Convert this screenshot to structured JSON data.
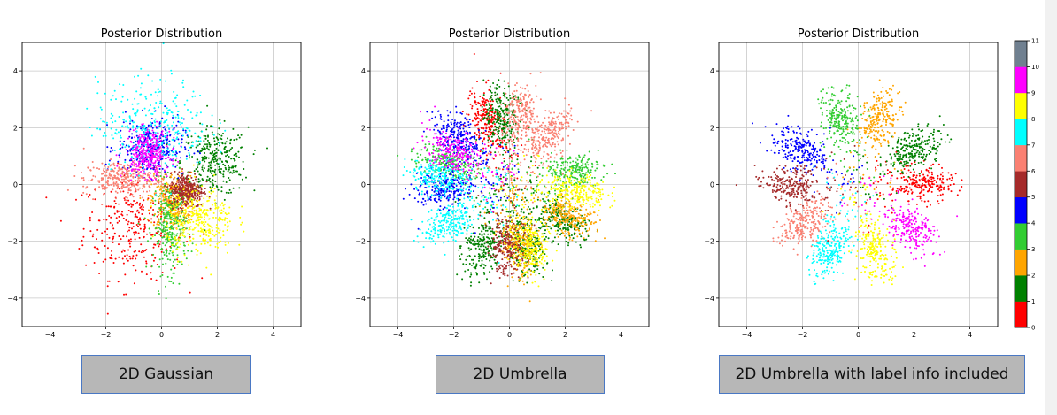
{
  "chart_data": [
    {
      "type": "scatter",
      "title": "Posterior Distribution",
      "model": "gaussian",
      "xlim": [
        -5,
        5
      ],
      "ylim": [
        -5,
        5
      ],
      "xticks": [
        -4,
        -2,
        0,
        2,
        4
      ],
      "yticks": [
        -4,
        -2,
        0,
        2,
        4
      ],
      "grid": true,
      "series": [
        {
          "label": "0",
          "cx": -1.0,
          "cy": -1.5,
          "sx": 0.9,
          "sy": 0.9
        },
        {
          "label": "1",
          "cx": 1.9,
          "cy": 0.8,
          "sx": 0.6,
          "sy": 0.6
        },
        {
          "label": "2",
          "cx": 0.4,
          "cy": -0.6,
          "sx": 0.4,
          "sy": 0.5
        },
        {
          "label": "3",
          "cx": 0.3,
          "cy": -1.5,
          "sx": 0.3,
          "sy": 0.8
        },
        {
          "label": "4",
          "cx": -0.4,
          "cy": 1.3,
          "sx": 0.6,
          "sy": 0.5
        },
        {
          "label": "5",
          "cx": 0.9,
          "cy": -0.2,
          "sx": 0.3,
          "sy": 0.3
        },
        {
          "label": "6",
          "cx": -1.4,
          "cy": 0.2,
          "sx": 0.7,
          "sy": 0.3
        },
        {
          "label": "7",
          "cx": -0.3,
          "cy": 2.1,
          "sx": 1.0,
          "sy": 0.8
        },
        {
          "label": "8",
          "cx": 1.4,
          "cy": -1.3,
          "sx": 0.6,
          "sy": 0.6
        },
        {
          "label": "9",
          "cx": -0.5,
          "cy": 1.1,
          "sx": 0.4,
          "sy": 0.4
        }
      ]
    },
    {
      "type": "scatter",
      "title": "Posterior Distribution",
      "model": "umbrella",
      "xlim": [
        -5,
        5
      ],
      "ylim": [
        -5,
        5
      ],
      "xticks": [
        -4,
        -2,
        0,
        2,
        4
      ],
      "yticks": [
        -4,
        -2,
        0,
        2,
        4
      ],
      "grid": true,
      "series": [
        {
          "label": "0",
          "petals": [
            [
              1.9,
              2.4
            ]
          ]
        },
        {
          "label": "1",
          "petals": [
            [
              4.3,
              2.4
            ],
            [
              1.7,
              2.4
            ],
            [
              -0.6,
              2.2
            ],
            [
              -1.3,
              2.3
            ]
          ]
        },
        {
          "label": "2",
          "petals": [
            [
              -0.5,
              2.4
            ],
            [
              -1.4,
              2.2
            ]
          ]
        },
        {
          "label": "3",
          "petals": [
            [
              0.2,
              2.3
            ],
            [
              2.8,
              2.3
            ]
          ]
        },
        {
          "label": "4",
          "petals": [
            [
              3.2,
              2.3
            ],
            [
              2.4,
              2.4
            ]
          ]
        },
        {
          "label": "5",
          "petals": [
            [
              -1.6,
              2.2
            ]
          ]
        },
        {
          "label": "6",
          "petals": [
            [
              1.4,
              2.4
            ],
            [
              0.9,
              2.3
            ]
          ]
        },
        {
          "label": "7",
          "petals": [
            [
              3.7,
              2.4
            ],
            [
              3.05,
              2.5
            ]
          ]
        },
        {
          "label": "8",
          "petals": [
            [
              -0.1,
              2.4
            ],
            [
              -1.25,
              2.3
            ]
          ]
        },
        {
          "label": "9",
          "petals": [
            [
              2.6,
              2.3
            ]
          ]
        }
      ]
    },
    {
      "type": "scatter",
      "title": "Posterior Distribution",
      "model": "umbrella",
      "xlim": [
        -5,
        5
      ],
      "ylim": [
        -5,
        5
      ],
      "xticks": [
        -4,
        -2,
        0,
        2,
        4
      ],
      "yticks": [
        -4,
        -2,
        0,
        2,
        4
      ],
      "grid": true,
      "series": [
        {
          "label": "0",
          "petals": [
            [
              0.0,
              2.3
            ]
          ]
        },
        {
          "label": "1",
          "petals": [
            [
              0.57,
              2.4
            ]
          ]
        },
        {
          "label": "2",
          "petals": [
            [
              1.25,
              2.4
            ]
          ]
        },
        {
          "label": "3",
          "petals": [
            [
              1.85,
              2.4
            ]
          ]
        },
        {
          "label": "4",
          "petals": [
            [
              2.6,
              2.4
            ]
          ]
        },
        {
          "label": "5",
          "petals": [
            [
              3.14,
              2.4
            ]
          ]
        },
        {
          "label": "6",
          "petals": [
            [
              3.75,
              2.4
            ]
          ]
        },
        {
          "label": "7",
          "petals": [
            [
              4.3,
              2.4
            ]
          ]
        },
        {
          "label": "8",
          "petals": [
            [
              4.95,
              2.4
            ]
          ]
        },
        {
          "label": "9",
          "petals": [
            [
              5.6,
              2.4
            ]
          ]
        }
      ]
    }
  ],
  "colorbar": {
    "ticks": [
      "0",
      "1",
      "2",
      "3",
      "4",
      "5",
      "6",
      "7",
      "8",
      "9",
      "10",
      "11"
    ],
    "colors": [
      "#ff0000",
      "#008000",
      "#ffa500",
      "#32cd32",
      "#0000ff",
      "#a52a2a",
      "#fa8072",
      "#00ffff",
      "#ffff00",
      "#ff00ff",
      "#708090"
    ]
  },
  "captions": [
    "2D Gaussian",
    "2D Umbrella",
    "2D Umbrella with label info included"
  ]
}
